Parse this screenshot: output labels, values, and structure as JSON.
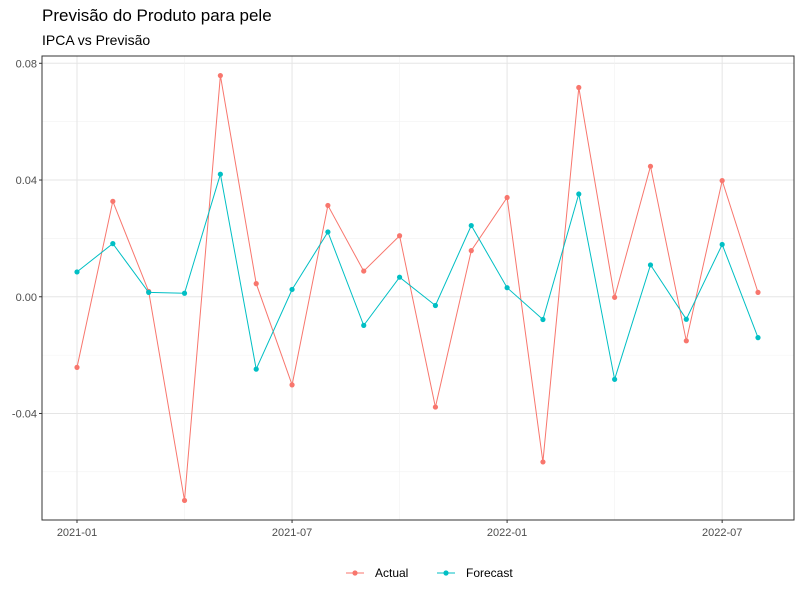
{
  "chart_data": {
    "type": "line",
    "title": "Previsão do Produto para pele",
    "subtitle": "IPCA vs Previsão",
    "xlabel": "",
    "ylabel": "",
    "x": [
      "2021-01",
      "2021-02",
      "2021-03",
      "2021-04",
      "2021-05",
      "2021-06",
      "2021-07",
      "2021-08",
      "2021-09",
      "2021-10",
      "2021-11",
      "2021-12",
      "2022-01",
      "2022-02",
      "2022-03",
      "2022-04",
      "2022-05",
      "2022-06",
      "2022-07",
      "2022-08"
    ],
    "series": [
      {
        "name": "Actual",
        "color": "#F8766D",
        "values": [
          -0.0242,
          0.0327,
          0.0018,
          -0.0698,
          0.0758,
          0.0045,
          -0.0302,
          0.0313,
          0.0088,
          0.0209,
          -0.0378,
          0.0158,
          0.034,
          -0.0566,
          0.0717,
          -0.0002,
          0.0447,
          -0.0151,
          0.0398,
          0.0015
        ]
      },
      {
        "name": "Forecast",
        "color": "#00BFC4",
        "values": [
          0.0085,
          0.0182,
          0.0015,
          0.0012,
          0.042,
          -0.0248,
          0.0025,
          0.0222,
          -0.0098,
          0.0067,
          -0.003,
          0.0244,
          0.0031,
          -0.0078,
          0.0352,
          -0.0283,
          0.0109,
          -0.0077,
          0.0179,
          -0.014
        ]
      }
    ],
    "ylim": [
      -0.0765,
      0.0825
    ],
    "y_ticks": [
      "-0.04",
      "0.00",
      "0.04",
      "0.08"
    ],
    "y_tick_values": [
      -0.04,
      0,
      0.04,
      0.08
    ],
    "x_ticks": [
      "2021-01",
      "2021-07",
      "2022-01",
      "2022-07"
    ],
    "grid": true,
    "legend_position": "bottom"
  }
}
